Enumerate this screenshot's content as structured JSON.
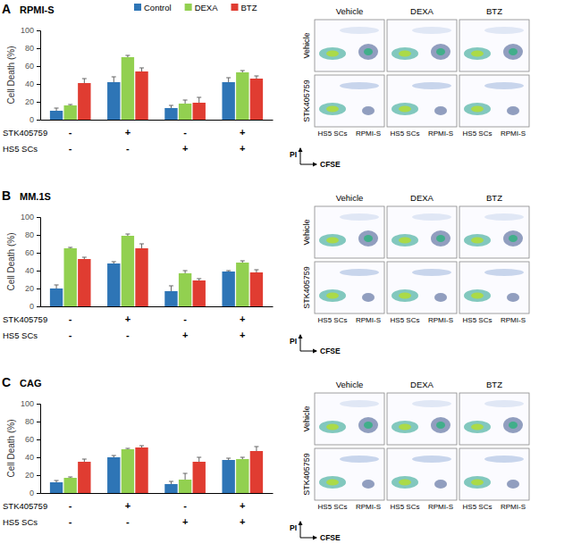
{
  "chart_data": [
    {
      "type": "bar",
      "panel": "A",
      "title": "RPMI-S",
      "y_label": "Cell Death (%)",
      "categories": [
        null,
        null,
        null,
        null
      ],
      "conditions": [
        {
          "label": "STK405759",
          "marks": [
            "-",
            "+",
            "-",
            "+"
          ]
        },
        {
          "label": "HS5 SCs",
          "marks": [
            "-",
            "-",
            "+",
            "+"
          ]
        }
      ],
      "series": [
        {
          "name": "Control",
          "color": "#2e75b6",
          "values": [
            10,
            42,
            13,
            42
          ],
          "errors": [
            3,
            6,
            3,
            5
          ]
        },
        {
          "name": "DEXA",
          "color": "#92d050",
          "values": [
            16,
            70,
            18,
            53
          ],
          "errors": [
            1,
            2,
            4,
            2
          ]
        },
        {
          "name": "BTZ",
          "color": "#e03c31",
          "values": [
            41,
            54,
            19,
            46
          ],
          "errors": [
            5,
            4,
            6,
            3
          ]
        }
      ],
      "ylim": [
        0,
        100
      ],
      "yticks": [
        0,
        20,
        40,
        60,
        80,
        100
      ],
      "grid": false,
      "legend": "top",
      "flow": {
        "columns": [
          "Vehicle",
          "DEXA",
          "BTZ"
        ],
        "rows": [
          "Vehicle",
          "STK405759"
        ],
        "x_groups": [
          "HS5 SCs",
          "RPMI-S"
        ],
        "x_label": "CFSE",
        "y_label": "PI"
      }
    },
    {
      "type": "bar",
      "panel": "B",
      "title": "MM.1S",
      "y_label": "Cell Death (%)",
      "categories": [
        null,
        null,
        null,
        null
      ],
      "conditions": [
        {
          "label": "STK405759",
          "marks": [
            "-",
            "+",
            "-",
            "+"
          ]
        },
        {
          "label": "HS5 SCs",
          "marks": [
            "-",
            "-",
            "+",
            "+"
          ]
        }
      ],
      "series": [
        {
          "color": "#2e75b6",
          "values": [
            20,
            48,
            17,
            39
          ],
          "errors": [
            4,
            2,
            6,
            1
          ]
        },
        {
          "color": "#92d050",
          "values": [
            65,
            79,
            37,
            49
          ],
          "errors": [
            1,
            2,
            3,
            2
          ]
        },
        {
          "color": "#e03c31",
          "values": [
            53,
            65,
            29,
            38
          ],
          "errors": [
            2,
            5,
            2,
            3
          ]
        }
      ],
      "ylim": [
        0,
        100
      ],
      "yticks": [
        0,
        20,
        40,
        60,
        80,
        100
      ],
      "grid": false,
      "flow": {
        "columns": [
          "Vehicle",
          "DEXA",
          "BTZ"
        ],
        "rows": [
          "Vehicle",
          "STK405759"
        ],
        "x_groups": [
          "HS5 SCs",
          "RPMI-S"
        ],
        "x_label": "CFSE",
        "y_label": "PI"
      }
    },
    {
      "type": "bar",
      "panel": "C",
      "title": "CAG",
      "y_label": "Cell Death (%)",
      "categories": [
        null,
        null,
        null,
        null
      ],
      "conditions": [
        {
          "label": "STK405759",
          "marks": [
            "-",
            "+",
            "-",
            "+"
          ]
        },
        {
          "label": "HS5 SCs",
          "marks": [
            "-",
            "-",
            "+",
            "+"
          ]
        }
      ],
      "series": [
        {
          "color": "#2e75b6",
          "values": [
            12,
            40,
            10,
            37
          ],
          "errors": [
            2,
            2,
            3,
            2
          ]
        },
        {
          "color": "#92d050",
          "values": [
            17,
            49,
            15,
            38
          ],
          "errors": [
            1,
            1,
            7,
            2
          ]
        },
        {
          "color": "#e03c31",
          "values": [
            35,
            51,
            35,
            47
          ],
          "errors": [
            3,
            2,
            5,
            5
          ]
        }
      ],
      "ylim": [
        0,
        100
      ],
      "yticks": [
        0,
        20,
        40,
        60,
        80,
        100
      ],
      "grid": false,
      "flow": {
        "columns": [
          "Vehicle",
          "DEXA",
          "BTZ"
        ],
        "rows": [
          "Vehicle",
          "STK405759"
        ],
        "x_groups": [
          "HS5 SCs",
          "RPMI-S"
        ],
        "x_label": "CFSE",
        "y_label": "PI"
      }
    }
  ]
}
